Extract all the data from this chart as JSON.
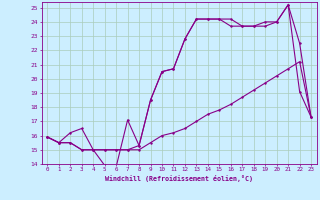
{
  "xlabel": "Windchill (Refroidissement éolien,°C)",
  "bg_color": "#cceeff",
  "grid_color": "#aaccbb",
  "line_color": "#880088",
  "xlim": [
    -0.5,
    23.5
  ],
  "ylim": [
    14,
    25.4
  ],
  "xticks": [
    0,
    1,
    2,
    3,
    4,
    5,
    6,
    7,
    8,
    9,
    10,
    11,
    12,
    13,
    14,
    15,
    16,
    17,
    18,
    19,
    20,
    21,
    22,
    23
  ],
  "yticks": [
    14,
    15,
    16,
    17,
    18,
    19,
    20,
    21,
    22,
    23,
    24,
    25
  ],
  "line1_x": [
    0,
    1,
    2,
    3,
    4,
    5,
    6,
    7,
    8,
    9,
    10,
    11,
    12,
    13,
    14,
    15,
    16,
    17,
    18,
    19,
    20,
    21,
    22,
    23
  ],
  "line1_y": [
    15.9,
    15.5,
    15.5,
    15.0,
    15.0,
    15.0,
    15.0,
    15.0,
    15.0,
    15.5,
    16.0,
    16.2,
    16.5,
    17.0,
    17.5,
    17.8,
    18.2,
    18.7,
    19.2,
    19.7,
    20.2,
    20.7,
    21.2,
    17.3
  ],
  "line2_x": [
    0,
    1,
    2,
    3,
    4,
    5,
    6,
    7,
    8,
    9,
    10,
    11,
    12,
    13,
    14,
    15,
    16,
    17,
    18,
    19,
    20,
    21,
    22,
    23
  ],
  "line2_y": [
    15.9,
    15.5,
    15.5,
    15.0,
    15.0,
    13.9,
    13.8,
    17.1,
    15.3,
    18.5,
    20.5,
    20.7,
    22.8,
    24.2,
    24.2,
    24.2,
    24.2,
    23.7,
    23.7,
    24.0,
    24.0,
    25.2,
    19.1,
    17.3
  ],
  "line3_x": [
    0,
    1,
    2,
    3,
    4,
    5,
    6,
    7,
    8,
    9,
    10,
    11,
    12,
    13,
    14,
    15,
    16,
    17,
    18,
    19,
    20,
    21,
    22,
    23
  ],
  "line3_y": [
    15.9,
    15.5,
    16.2,
    16.5,
    15.0,
    15.0,
    15.0,
    15.0,
    15.3,
    18.5,
    20.5,
    20.7,
    22.8,
    24.2,
    24.2,
    24.2,
    23.7,
    23.7,
    23.7,
    23.7,
    24.0,
    25.2,
    22.5,
    17.3
  ]
}
